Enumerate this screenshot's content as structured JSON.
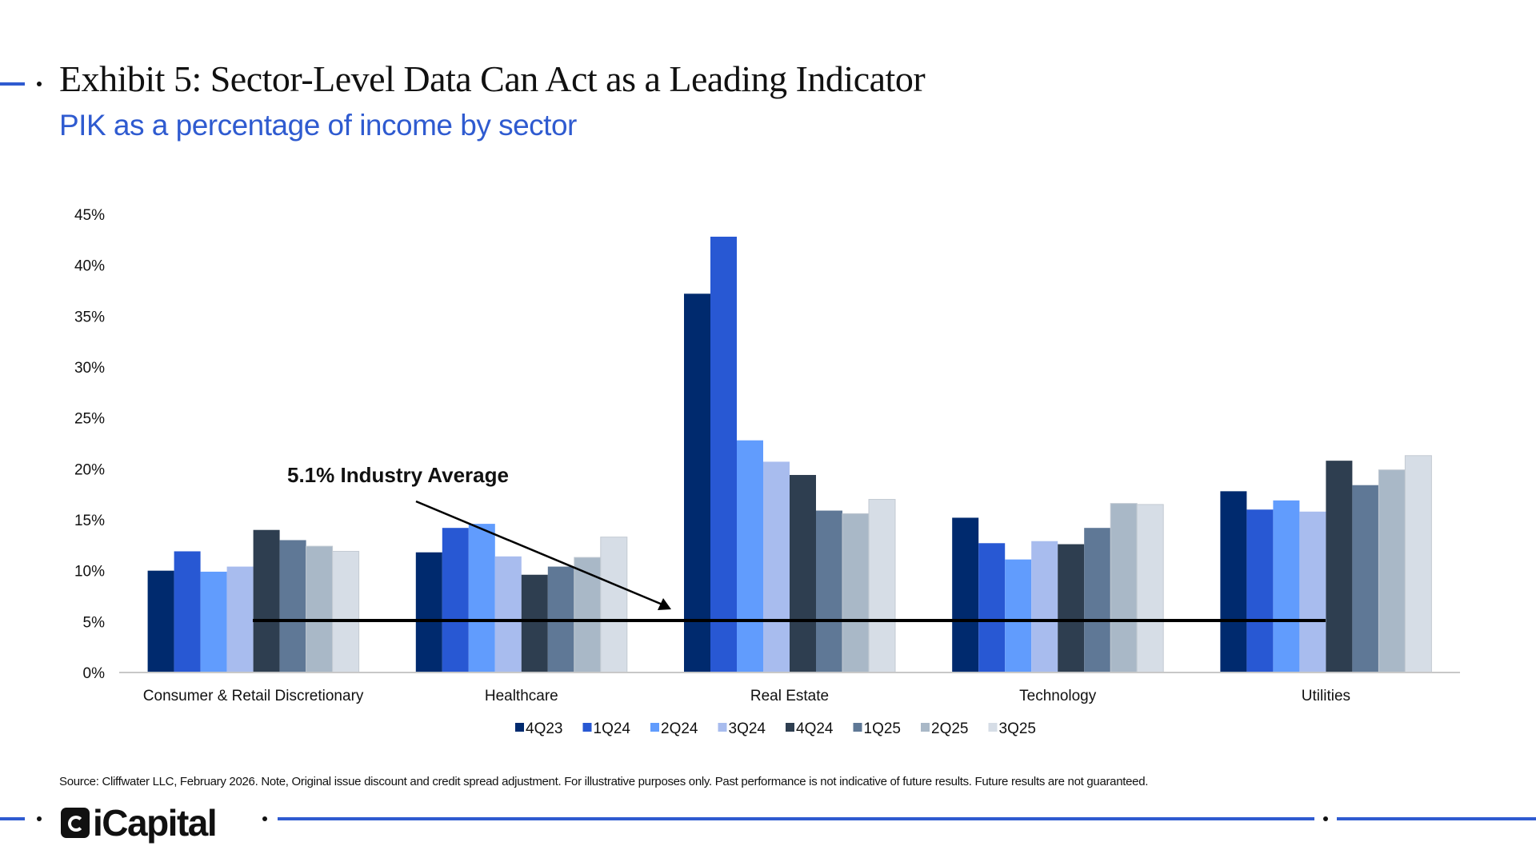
{
  "header": {
    "title": "Exhibit 5: Sector-Level Data Can Act as a Leading Indicator",
    "subtitle": "PIK as a percentage of income by sector"
  },
  "chart_data": {
    "type": "bar",
    "title": "",
    "xlabel": "",
    "ylabel": "",
    "ylim": [
      0,
      45
    ],
    "yticks": [
      "0%",
      "5%",
      "10%",
      "15%",
      "20%",
      "25%",
      "30%",
      "35%",
      "40%",
      "45%"
    ],
    "grid": false,
    "legend_position": "bottom",
    "categories": [
      "Consumer & Retail Discretionary",
      "Healthcare",
      "Real Estate",
      "Technology",
      "Utilities"
    ],
    "series": [
      {
        "name": "4Q23",
        "color": "#002a6e",
        "values": [
          10.0,
          11.8,
          37.2,
          15.2,
          17.8
        ]
      },
      {
        "name": "1Q24",
        "color": "#2858d3",
        "values": [
          11.9,
          14.2,
          42.8,
          12.7,
          16.0
        ]
      },
      {
        "name": "2Q24",
        "color": "#619cfd",
        "values": [
          9.9,
          14.6,
          22.8,
          11.1,
          16.9
        ]
      },
      {
        "name": "3Q24",
        "color": "#a8bcee",
        "values": [
          10.4,
          11.4,
          20.7,
          12.9,
          15.8
        ]
      },
      {
        "name": "4Q24",
        "color": "#2e3e50",
        "values": [
          14.0,
          9.6,
          19.4,
          12.6,
          20.8
        ]
      },
      {
        "name": "1Q25",
        "color": "#5f7896",
        "values": [
          13.0,
          10.4,
          15.9,
          14.2,
          18.4
        ]
      },
      {
        "name": "2Q25",
        "color": "#a9b8c7",
        "values": [
          12.4,
          11.3,
          15.6,
          16.6,
          19.9
        ]
      },
      {
        "name": "3Q25",
        "color": "#d6dde6",
        "values": [
          11.9,
          13.3,
          17.0,
          16.5,
          21.3
        ]
      }
    ],
    "reference_line": {
      "value": 5.1,
      "label": "5.1% Industry Average"
    }
  },
  "footer": {
    "source": "Source: Cliffwater LLC, February 2026. Note, Original issue discount and credit spread adjustment. For illustrative purposes only. Past performance is not indicative of future results. Future results are not guaranteed.",
    "logo": "iCapital",
    "accent_color": "#2f5bd0"
  }
}
